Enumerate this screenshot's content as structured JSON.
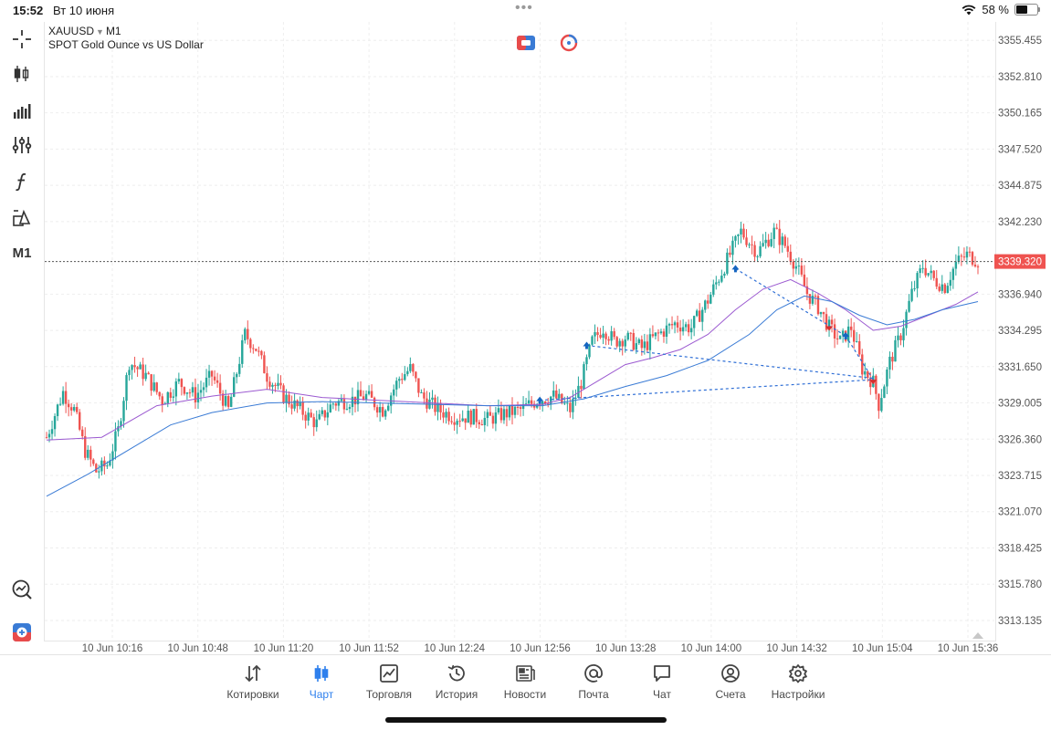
{
  "status": {
    "time": "15:52",
    "date": "Вт 10 июня",
    "dots": "•••",
    "battery": "58 %",
    "battery_level": 0.58
  },
  "symbol": {
    "name": "XAUUSD",
    "timeframe": "M1",
    "description": "SPOT Gold Ounce vs US Dollar"
  },
  "toolbar": {
    "timeframe_label": "M1"
  },
  "colors": {
    "bull": "#26a69a",
    "bear": "#ef5350",
    "ma_fast": "#9b59d0",
    "ma_slow": "#3a7bd5",
    "trade_line": "#2f6fd6",
    "accent": "#2f80ed"
  },
  "chart_data": {
    "type": "candlestick",
    "ylim": [
      3311.8,
      3356.8
    ],
    "y_ticks": [
      "3355.455",
      "3352.810",
      "3350.165",
      "3347.520",
      "3344.875",
      "3342.230",
      "3339.320",
      "3336.940",
      "3334.295",
      "3331.650",
      "3329.005",
      "3326.360",
      "3323.715",
      "3321.070",
      "3318.425",
      "3315.780",
      "3313.135"
    ],
    "current_price": 3339.32,
    "current_price_label": "3339.320",
    "x_ticks": [
      "10 Jun 10:16",
      "10 Jun 10:48",
      "10 Jun 11:20",
      "10 Jun 11:52",
      "10 Jun 12:24",
      "10 Jun 12:56",
      "10 Jun 13:28",
      "10 Jun 14:00",
      "10 Jun 14:32",
      "10 Jun 15:04",
      "10 Jun 15:36"
    ],
    "price_path": [
      [
        0,
        3326.5
      ],
      [
        6,
        3329.8
      ],
      [
        10,
        3328.5
      ],
      [
        14,
        3325.5
      ],
      [
        18,
        3324.0
      ],
      [
        22,
        3324.5
      ],
      [
        26,
        3327.0
      ],
      [
        30,
        3332.0
      ],
      [
        36,
        3331.0
      ],
      [
        42,
        3329.2
      ],
      [
        48,
        3330.5
      ],
      [
        54,
        3329.5
      ],
      [
        60,
        3331.0
      ],
      [
        66,
        3328.5
      ],
      [
        72,
        3334.0
      ],
      [
        76,
        3333.0
      ],
      [
        80,
        3331.0
      ],
      [
        86,
        3329.5
      ],
      [
        92,
        3328.5
      ],
      [
        98,
        3327.5
      ],
      [
        104,
        3329.0
      ],
      [
        110,
        3329.2
      ],
      [
        116,
        3329.5
      ],
      [
        122,
        3328.5
      ],
      [
        128,
        3330.8
      ],
      [
        132,
        3331.5
      ],
      [
        136,
        3329.5
      ],
      [
        142,
        3328.5
      ],
      [
        148,
        3328.0
      ],
      [
        154,
        3328.0
      ],
      [
        160,
        3327.8
      ],
      [
        166,
        3328.2
      ],
      [
        172,
        3328.5
      ],
      [
        178,
        3329.2
      ],
      [
        184,
        3329.5
      ],
      [
        190,
        3328.5
      ],
      [
        194,
        3330.5
      ],
      [
        198,
        3333.5
      ],
      [
        202,
        3334.5
      ],
      [
        206,
        3333.5
      ],
      [
        210,
        3333.8
      ],
      [
        216,
        3333.0
      ],
      [
        222,
        3334.0
      ],
      [
        228,
        3334.8
      ],
      [
        234,
        3334.5
      ],
      [
        240,
        3336.5
      ],
      [
        246,
        3339.0
      ],
      [
        252,
        3341.5
      ],
      [
        258,
        3340.0
      ],
      [
        264,
        3341.5
      ],
      [
        268,
        3340.5
      ],
      [
        272,
        3339.0
      ],
      [
        276,
        3337.0
      ],
      [
        280,
        3336.0
      ],
      [
        284,
        3334.5
      ],
      [
        288,
        3333.5
      ],
      [
        292,
        3334.5
      ],
      [
        296,
        3331.5
      ],
      [
        300,
        3330.5
      ],
      [
        302,
        3328.9
      ],
      [
        306,
        3332.0
      ],
      [
        310,
        3334.0
      ],
      [
        314,
        3337.0
      ],
      [
        318,
        3339.0
      ],
      [
        322,
        3338.0
      ],
      [
        326,
        3337.5
      ],
      [
        330,
        3339.2
      ],
      [
        334,
        3339.8
      ],
      [
        338,
        3339.4
      ]
    ],
    "series": [
      {
        "name": "",
        "points": [
          [
            0,
            3326.3
          ],
          [
            20,
            3326.5
          ],
          [
            40,
            3328.8
          ],
          [
            60,
            3329.5
          ],
          [
            80,
            3330.0
          ],
          [
            100,
            3329.4
          ],
          [
            120,
            3329.2
          ],
          [
            140,
            3329.0
          ],
          [
            160,
            3328.8
          ],
          [
            180,
            3328.9
          ],
          [
            190,
            3329.4
          ],
          [
            200,
            3330.6
          ],
          [
            210,
            3331.8
          ],
          [
            220,
            3332.3
          ],
          [
            230,
            3332.9
          ],
          [
            240,
            3334.0
          ],
          [
            250,
            3335.8
          ],
          [
            260,
            3337.3
          ],
          [
            270,
            3338.0
          ],
          [
            280,
            3337.0
          ],
          [
            290,
            3335.8
          ],
          [
            300,
            3334.3
          ],
          [
            310,
            3334.6
          ],
          [
            320,
            3335.4
          ],
          [
            330,
            3336.2
          ],
          [
            338,
            3337.1
          ]
        ]
      },
      {
        "name": "",
        "points": [
          [
            0,
            3322.2
          ],
          [
            15,
            3323.8
          ],
          [
            30,
            3325.6
          ],
          [
            45,
            3327.4
          ],
          [
            60,
            3328.3
          ],
          [
            80,
            3329.0
          ],
          [
            100,
            3329.1
          ],
          [
            120,
            3329.0
          ],
          [
            140,
            3328.9
          ],
          [
            160,
            3328.8
          ],
          [
            180,
            3328.8
          ],
          [
            195,
            3329.3
          ],
          [
            210,
            3330.2
          ],
          [
            225,
            3331.0
          ],
          [
            240,
            3332.1
          ],
          [
            255,
            3334.0
          ],
          [
            265,
            3335.8
          ],
          [
            275,
            3336.8
          ],
          [
            285,
            3336.4
          ],
          [
            295,
            3335.4
          ],
          [
            305,
            3334.7
          ],
          [
            315,
            3335.1
          ],
          [
            325,
            3335.8
          ],
          [
            338,
            3336.4
          ]
        ]
      }
    ],
    "trades": [
      {
        "from": [
          179,
          3329.2
        ],
        "to": [
          300,
          3330.7
        ],
        "type": "buy"
      },
      {
        "from": [
          196,
          3333.2
        ],
        "to": [
          300,
          3330.8
        ],
        "type": "buy"
      },
      {
        "from": [
          250,
          3338.8
        ],
        "to": [
          290,
          3333.9
        ],
        "type": "buy"
      },
      {
        "from": [
          290,
          3333.9
        ],
        "to": [
          300,
          3330.7
        ],
        "type": "buy"
      }
    ]
  },
  "nav": [
    {
      "label": "Котировки",
      "icon": "quotes-icon"
    },
    {
      "label": "Чарт",
      "icon": "chart-icon"
    },
    {
      "label": "Торговля",
      "icon": "trade-icon"
    },
    {
      "label": "История",
      "icon": "history-icon"
    },
    {
      "label": "Новости",
      "icon": "news-icon"
    },
    {
      "label": "Почта",
      "icon": "mail-icon"
    },
    {
      "label": "Чат",
      "icon": "chat-icon"
    },
    {
      "label": "Счета",
      "icon": "accounts-icon"
    },
    {
      "label": "Настройки",
      "icon": "settings-icon"
    }
  ]
}
